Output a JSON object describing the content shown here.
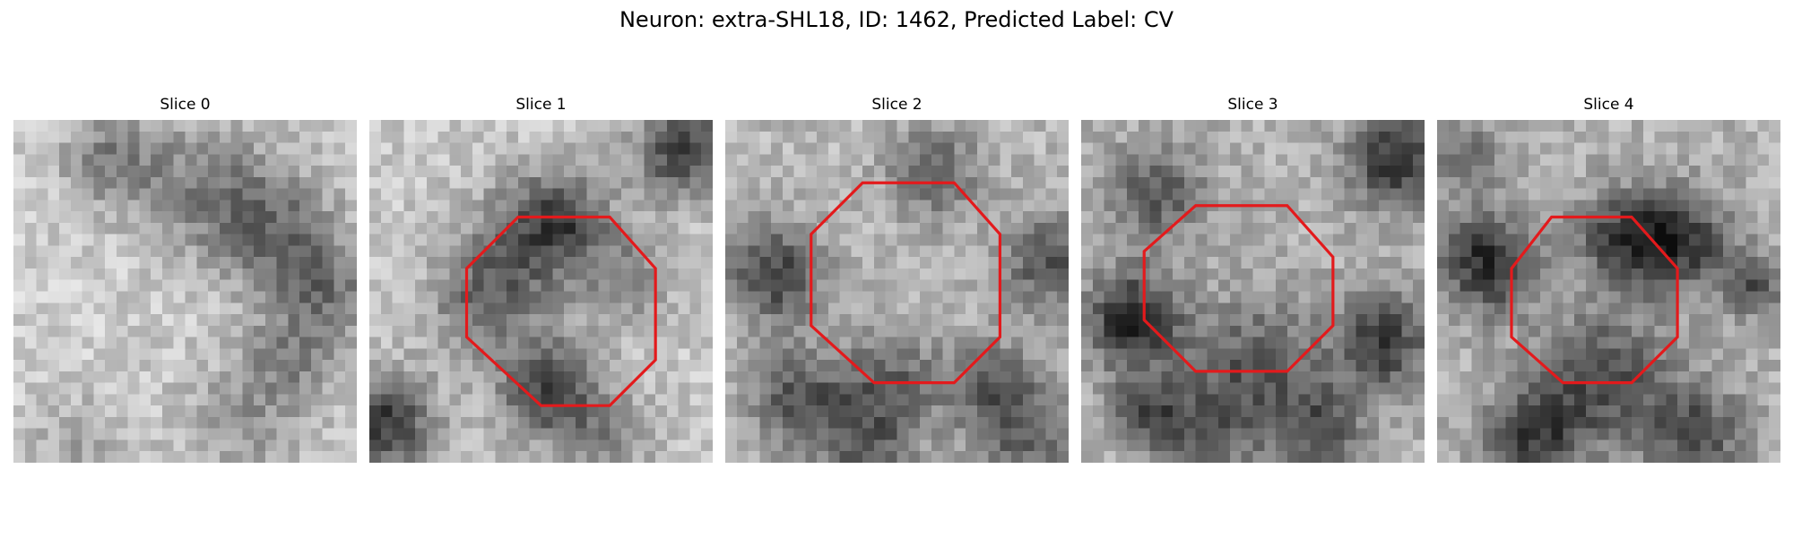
{
  "title": "Neuron: extra-SHL18, ID: 1462, Predicted Label: CV",
  "overlay_color": "#e31a1c",
  "panels": [
    {
      "label": "Slice 0",
      "overlay": false
    },
    {
      "label": "Slice 1",
      "overlay": true
    },
    {
      "label": "Slice 2",
      "overlay": true
    },
    {
      "label": "Slice 3",
      "overlay": true
    },
    {
      "label": "Slice 4",
      "overlay": true
    }
  ]
}
